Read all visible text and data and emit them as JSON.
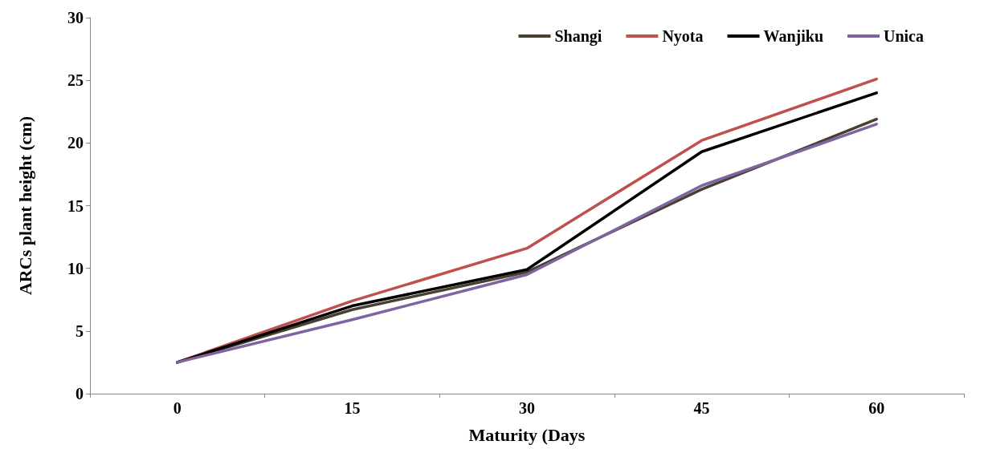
{
  "chart_data": {
    "type": "line",
    "xlabel": "Maturity (Days",
    "ylabel": "ARCs plant height (cm)",
    "categories": [
      "0",
      "15",
      "30",
      "45",
      "60"
    ],
    "series": [
      {
        "name": "Shangi",
        "color": "#4a4030",
        "values": [
          2.5,
          6.7,
          9.7,
          16.3,
          21.9
        ]
      },
      {
        "name": "Nyota",
        "color": "#c0504d",
        "values": [
          2.5,
          7.4,
          11.6,
          20.2,
          25.1
        ]
      },
      {
        "name": "Wanjiku",
        "color": "#000000",
        "values": [
          2.5,
          7.0,
          9.9,
          19.3,
          24.0
        ]
      },
      {
        "name": "Unica",
        "color": "#8064a2",
        "values": [
          2.5,
          5.9,
          9.5,
          16.6,
          21.5
        ]
      }
    ],
    "ylim": [
      0,
      30
    ],
    "yticks": [
      0,
      5,
      10,
      15,
      20,
      25,
      30
    ],
    "grid": false,
    "legend": "top right",
    "marker": "none",
    "line_style": "solid"
  }
}
